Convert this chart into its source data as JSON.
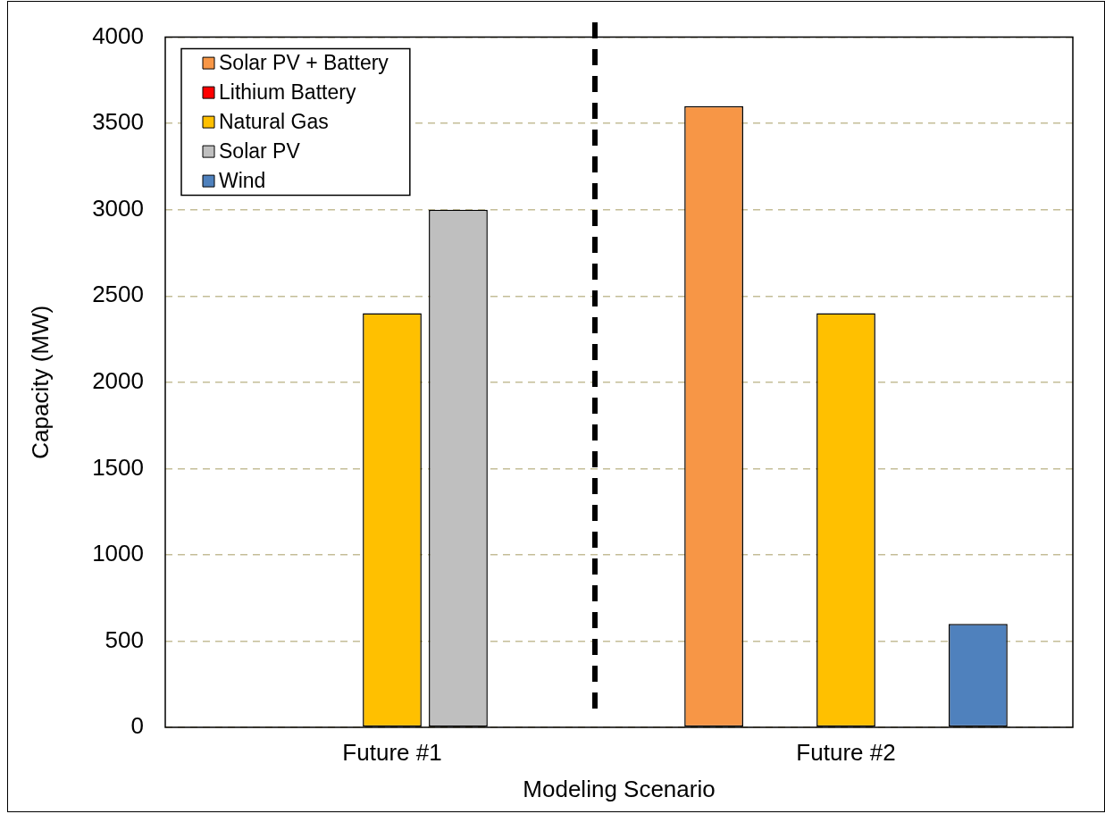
{
  "chart_data": {
    "type": "bar",
    "xlabel": "Modeling Scenario",
    "ylabel": "Capacity (MW)",
    "categories": [
      "Future #1",
      "Future #2"
    ],
    "series": [
      {
        "name": "Solar PV + Battery",
        "color": "#f79646",
        "values": [
          0,
          3600
        ]
      },
      {
        "name": "Lithium Battery",
        "color": "#ff0000",
        "values": [
          0,
          0
        ]
      },
      {
        "name": "Natural Gas",
        "color": "#ffc000",
        "values": [
          2400,
          2400
        ]
      },
      {
        "name": "Solar PV",
        "color": "#bfbfbf",
        "values": [
          3000,
          0
        ]
      },
      {
        "name": "Wind",
        "color": "#4f81bd",
        "values": [
          0,
          600
        ]
      }
    ],
    "ylim": [
      0,
      4000
    ],
    "yticks": [
      0,
      500,
      1000,
      1500,
      2000,
      2500,
      3000,
      3500,
      4000
    ],
    "grid": "y",
    "legend": "top left"
  }
}
